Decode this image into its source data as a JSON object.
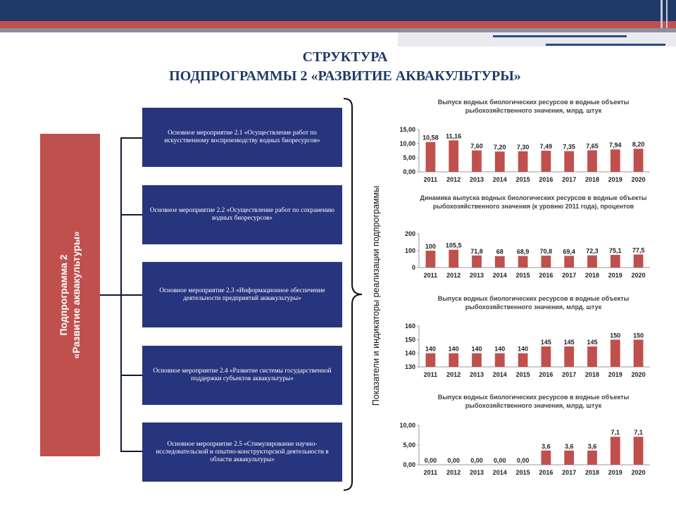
{
  "title": {
    "line1": "СТРУКТУРА",
    "line2": "ПОДПРОГРАММЫ 2 «РАЗВИТИЕ АКВАКУЛЬТУРЫ»"
  },
  "subprogram": {
    "line1": "Подпрограмма 2",
    "line2": "«Развитие аквакультуры»",
    "color": "#c0504d"
  },
  "activities": [
    "Основное мероприятие 2.1 «Осуществление работ по искусственному воспроизводству водных биоресурсов»",
    "Основное мероприятие 2.2 «Осуществление работ по сохранению водных биоресурсов»",
    "Основное мероприятие 2.3 «Информационное обеспечение деятельности предприятий аквакультуры»",
    "Основное мероприятие 2.4 «Развитие системы государственной поддержки субъектов аквакультуры»",
    "Основное мероприятие 2.5 «Стимулирование научно-исследовательской и опытно-конструкторской деятельности в области аквакультуры»"
  ],
  "indicators_label": "Показатели и индикаторы реализации подпрограммы",
  "colors": {
    "navy": "#1f3a68",
    "box_blue": "#27357e",
    "bar_red": "#c0504d"
  },
  "chart_data": [
    {
      "type": "bar",
      "title": "Выпуск водных биологических ресурсов в водные объекты рыбохозяйственного значения, млрд. штук",
      "categories": [
        "2011",
        "2012",
        "2013",
        "2014",
        "2015",
        "2016",
        "2017",
        "2018",
        "2019",
        "2020"
      ],
      "values": [
        10.58,
        11.16,
        7.6,
        7.2,
        7.3,
        7.49,
        7.35,
        7.65,
        7.94,
        8.2
      ],
      "labels": [
        "10,58",
        "11,16",
        "7,60",
        "7,20",
        "7,30",
        "7,49",
        "7,35",
        "7,65",
        "7,94",
        "8,20"
      ],
      "yticks": [
        "0,00",
        "5,00",
        "10,00",
        "15,00"
      ],
      "ylim": [
        0,
        15
      ],
      "grid": false
    },
    {
      "type": "bar",
      "title": "Динамика выпуска водных биологических ресурсов в водные объекты рыбохозяйственного значения (к уровню 2011 года), процентов",
      "categories": [
        "2011",
        "2012",
        "2013",
        "2014",
        "2015",
        "2016",
        "2017",
        "2018",
        "2019",
        "2020"
      ],
      "values": [
        100,
        105.5,
        71.8,
        68,
        68.9,
        70.8,
        69.4,
        72.3,
        75.1,
        77.5
      ],
      "labels": [
        "100",
        "105,5",
        "71,8",
        "68",
        "68,9",
        "70,8",
        "69,4",
        "72,3",
        "75,1",
        "77,5"
      ],
      "yticks": [
        "0",
        "100",
        "200"
      ],
      "ylim": [
        0,
        200
      ],
      "grid": false
    },
    {
      "type": "bar",
      "title": "Выпуск водных биологических ресурсов в водные объекты рыбохозяйственного значения, млрд. штук",
      "categories": [
        "2011",
        "2012",
        "2013",
        "2014",
        "2015",
        "2016",
        "2017",
        "2018",
        "2019",
        "2020"
      ],
      "values": [
        140,
        140,
        140,
        140,
        140,
        145,
        145,
        145,
        150,
        150
      ],
      "labels": [
        "140",
        "140",
        "140",
        "140",
        "140",
        "145",
        "145",
        "145",
        "150",
        "150"
      ],
      "yticks": [
        "130",
        "140",
        "150",
        "160"
      ],
      "ylim": [
        130,
        160
      ],
      "grid": false
    },
    {
      "type": "bar",
      "title": "Выпуск водных биологических ресурсов в водные объекты рыбохозяйственного значения, млрд. штук",
      "categories": [
        "2011",
        "2012",
        "2013",
        "2014",
        "2015",
        "2016",
        "2017",
        "2018",
        "2019",
        "2020"
      ],
      "values": [
        0,
        0,
        0,
        0,
        0,
        3.6,
        3.6,
        3.6,
        7.1,
        7.1
      ],
      "labels": [
        "0,00",
        "0,00",
        "0,00",
        "0,00",
        "0,00",
        "3,6",
        "3,6",
        "3,6",
        "7,1",
        "7,1"
      ],
      "yticks": [
        "0,00",
        "5,00",
        "10,00"
      ],
      "ylim": [
        0,
        10
      ],
      "grid": false
    }
  ]
}
